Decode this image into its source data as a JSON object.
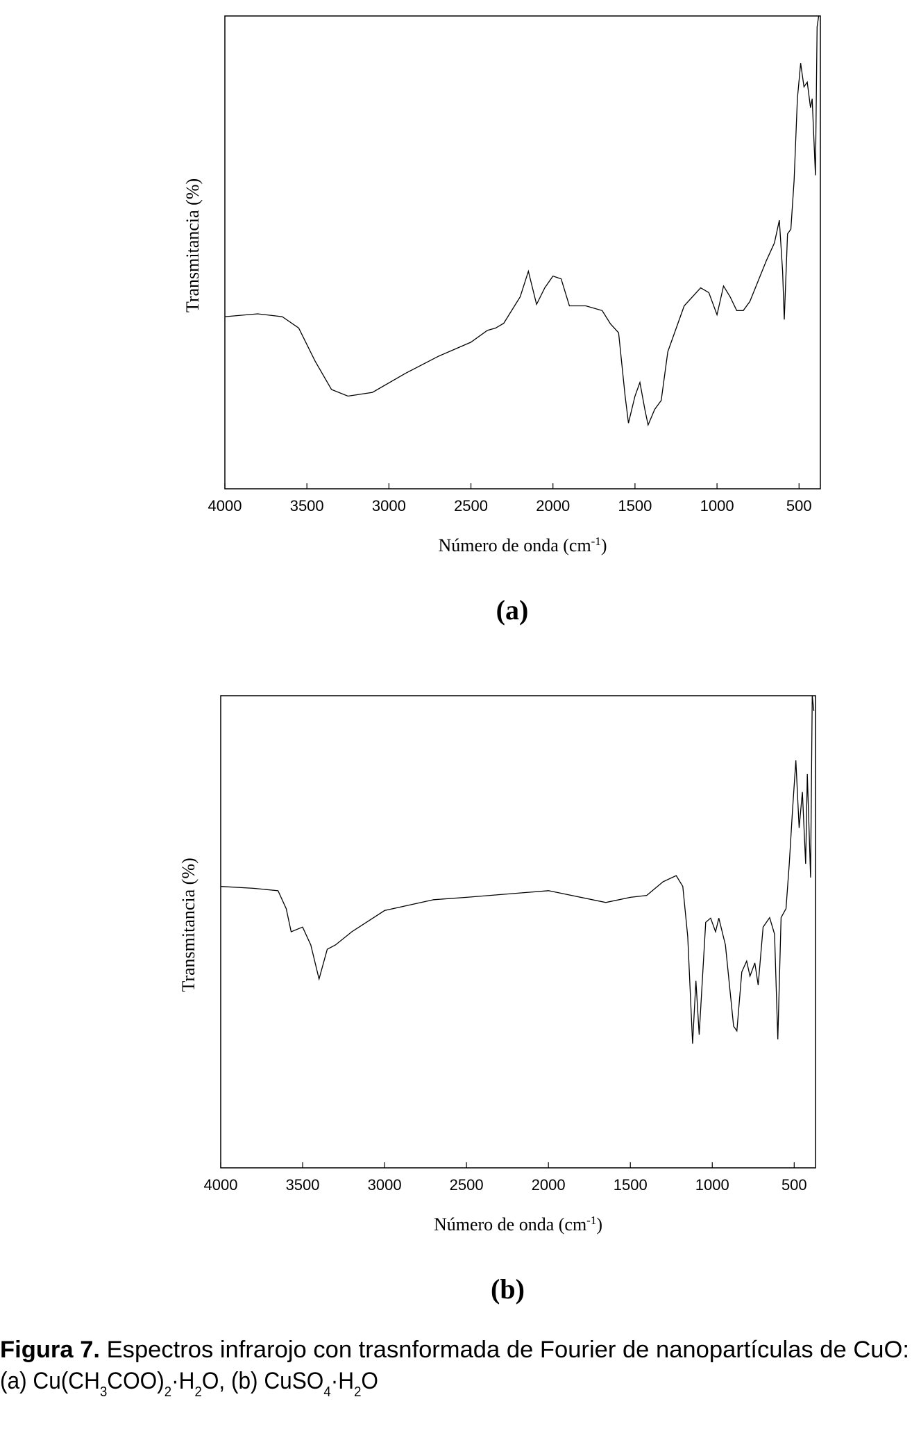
{
  "chart_data": [
    {
      "type": "line",
      "panel_label": "(a)",
      "ylabel": "Transmitancia (%)",
      "xlabel": [
        "Número de onda (cm",
        "-1",
        ")"
      ],
      "xlim": [
        4000,
        370
      ],
      "xticks": [
        4000,
        3500,
        3000,
        2500,
        2000,
        1500,
        1000,
        500
      ],
      "ylim": [
        0,
        100
      ],
      "color": "#000000",
      "x": [
        4000,
        3800,
        3650,
        3550,
        3450,
        3350,
        3250,
        3100,
        2900,
        2700,
        2500,
        2400,
        2350,
        2300,
        2200,
        2150,
        2100,
        2050,
        2000,
        1950,
        1900,
        1800,
        1700,
        1650,
        1600,
        1560,
        1540,
        1500,
        1470,
        1440,
        1420,
        1380,
        1340,
        1300,
        1200,
        1100,
        1050,
        1000,
        960,
        920,
        880,
        840,
        800,
        700,
        650,
        620,
        600,
        590,
        570,
        550,
        530,
        510,
        490,
        470,
        450,
        430,
        420,
        400,
        390,
        380
      ],
      "values": [
        36.4,
        37,
        36.4,
        34,
        27,
        21,
        19.6,
        20.4,
        24.4,
        28,
        31,
        33.5,
        34,
        35,
        40.6,
        46,
        39,
        42.5,
        45,
        44.4,
        38.7,
        38.7,
        37.7,
        34.9,
        33,
        19.6,
        13.9,
        19.6,
        22.5,
        16.8,
        13.5,
        16.8,
        18.7,
        29,
        38.7,
        42.5,
        41.5,
        36.8,
        42.9,
        40.6,
        37.7,
        37.7,
        39.6,
        48.2,
        52,
        56.8,
        46,
        35.8,
        53.9,
        54.9,
        65.3,
        82.5,
        90,
        85,
        86,
        80.6,
        82.5,
        66.3,
        97.7,
        100
      ]
    },
    {
      "type": "line",
      "panel_label": "(b)",
      "ylabel": "Transmitancia (%)",
      "xlabel": [
        "Número de onda (cm",
        "-1",
        ")"
      ],
      "xlim": [
        4000,
        370
      ],
      "xticks": [
        4000,
        3500,
        3000,
        2500,
        2000,
        1500,
        1000,
        500
      ],
      "ylim": [
        0,
        100
      ],
      "color": "#000000",
      "x": [
        4000,
        3800,
        3650,
        3600,
        3570,
        3500,
        3450,
        3400,
        3350,
        3300,
        3200,
        3000,
        2700,
        2500,
        2000,
        1650,
        1500,
        1400,
        1300,
        1220,
        1180,
        1150,
        1120,
        1100,
        1080,
        1040,
        1010,
        980,
        960,
        920,
        870,
        850,
        820,
        790,
        770,
        740,
        720,
        690,
        650,
        620,
        600,
        580,
        550,
        530,
        510,
        490,
        470,
        450,
        430,
        420,
        400,
        390,
        380
      ],
      "values": [
        59.6,
        59.2,
        58.7,
        54.9,
        50,
        51,
        47.2,
        40,
        46.3,
        47.2,
        50,
        54.5,
        56.8,
        57.3,
        58.7,
        56.2,
        57.3,
        57.7,
        60.6,
        61.9,
        59.6,
        49,
        26.3,
        39.6,
        28.2,
        52,
        52.9,
        50,
        52.9,
        47.2,
        30,
        29,
        41.5,
        43.8,
        40.6,
        43.4,
        38.7,
        51,
        53,
        49.5,
        27.2,
        53,
        54.9,
        64.4,
        75.8,
        86.3,
        72,
        79.6,
        64.4,
        83.4,
        61.5,
        100,
        96.8
      ]
    }
  ],
  "caption": {
    "label": "Figura 7.",
    "line1": "Espectros infrarojo con trasnformada de Fourier de nanopartículas de CuO:",
    "line2": [
      "(a) Cu(CH",
      "3",
      "COO)",
      "2",
      "·H",
      "2",
      "O, (b) CuSO",
      "4",
      "·H",
      "2",
      "O"
    ]
  }
}
